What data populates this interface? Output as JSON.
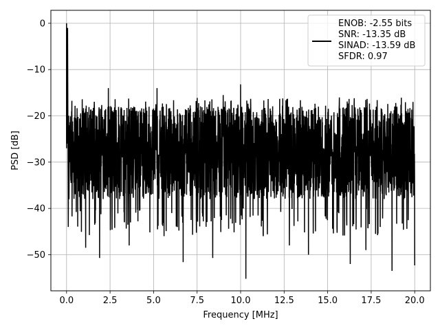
{
  "chart_data": {
    "type": "line",
    "title": "",
    "xlabel": "Frequency [MHz]",
    "ylabel": "PSD [dB]",
    "xlim": [
      -0.9,
      20.9
    ],
    "ylim": [
      -57.8,
      2.8
    ],
    "x_ticks": [
      0.0,
      2.5,
      5.0,
      7.5,
      10.0,
      12.5,
      15.0,
      17.5,
      20.0
    ],
    "x_tick_labels": [
      "0.0",
      "2.5",
      "5.0",
      "7.5",
      "10.0",
      "12.5",
      "15.0",
      "17.5",
      "20.0"
    ],
    "y_ticks": [
      0,
      -10,
      -20,
      -30,
      -40,
      -50
    ],
    "y_tick_labels": [
      "0",
      "−10",
      "−20",
      "−30",
      "−40",
      "−50"
    ],
    "grid": true,
    "legend_position": "top-right",
    "line_color": "#000000",
    "series": [
      {
        "name": "ENOB: -2.55 bits\nSNR: -13.35 dB\nSINAD: -13.59 dB\nSFDR: 0.97",
        "legend_lines": [
          "ENOB: -2.55 bits",
          "SNR: -13.35 dB",
          "SINAD: -13.59 dB",
          "SFDR: 0.97"
        ],
        "peaks": [
          {
            "x": 0.0,
            "y": 0.0
          },
          {
            "x": 0.05,
            "y": -7.0
          },
          {
            "x": 0.08,
            "y": -18.0
          },
          {
            "x": 0.12,
            "y": -1.0
          },
          {
            "x": 0.15,
            "y": -44.0
          },
          {
            "x": 0.2,
            "y": -38.0
          },
          {
            "x": 1.1,
            "y": -48.5
          },
          {
            "x": 1.9,
            "y": -50.7
          },
          {
            "x": 2.4,
            "y": -14.0
          },
          {
            "x": 3.6,
            "y": -48.0
          },
          {
            "x": 5.2,
            "y": -14.0
          },
          {
            "x": 5.6,
            "y": -46.0
          },
          {
            "x": 6.7,
            "y": -51.6
          },
          {
            "x": 8.4,
            "y": -50.7
          },
          {
            "x": 9.0,
            "y": -15.5
          },
          {
            "x": 10.0,
            "y": -13.2
          },
          {
            "x": 10.3,
            "y": -55.2
          },
          {
            "x": 11.3,
            "y": -46.0
          },
          {
            "x": 12.8,
            "y": -48.0
          },
          {
            "x": 13.9,
            "y": -50.0
          },
          {
            "x": 16.3,
            "y": -52.0
          },
          {
            "x": 17.2,
            "y": -49.0
          },
          {
            "x": 18.7,
            "y": -53.5
          },
          {
            "x": 19.9,
            "y": -17.0
          },
          {
            "x": 20.0,
            "y": -52.3
          }
        ],
        "noise_band_typical": [
          -38,
          -18
        ]
      }
    ]
  }
}
